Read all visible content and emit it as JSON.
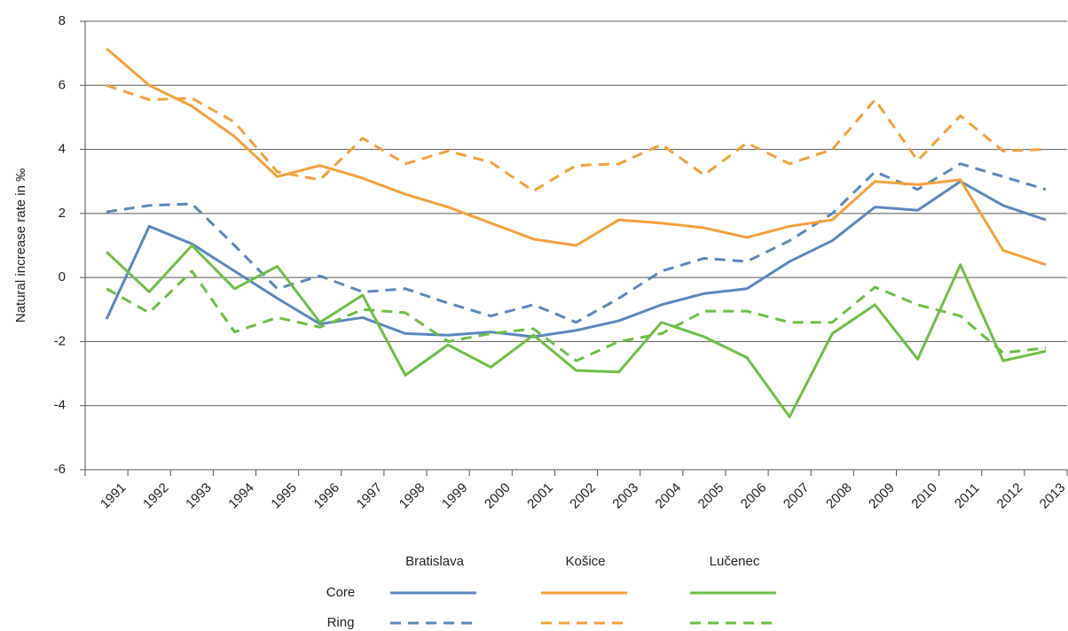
{
  "chart_data": {
    "type": "line",
    "y_label": "Natural increase rate in ‰",
    "categories": [
      "1991",
      "1992",
      "1993",
      "1994",
      "1995",
      "1996",
      "1997",
      "1998",
      "1999",
      "2000",
      "2001",
      "2002",
      "2003",
      "2004",
      "2005",
      "2006",
      "2007",
      "2008",
      "2009",
      "2010",
      "2011",
      "2012",
      "2013"
    ],
    "ylim": [
      -6,
      8
    ],
    "yticks": [
      -6,
      -4,
      -2,
      0,
      2,
      4,
      6,
      8
    ],
    "grid": true,
    "series": [
      {
        "name": "Bratislava",
        "color": "#5b87bd",
        "series": [
          {
            "name": "Core",
            "dashed": false,
            "values": [
              -1.3,
              1.6,
              1.05,
              0.2,
              -0.65,
              -1.45,
              -1.25,
              -1.75,
              -1.8,
              -1.7,
              -1.85,
              -1.65,
              -1.35,
              -0.85,
              -0.5,
              -0.35,
              0.5,
              1.15,
              2.2,
              2.1,
              3.0,
              2.25,
              1.8
            ]
          },
          {
            "name": "Ring",
            "dashed": true,
            "values": [
              2.05,
              2.25,
              2.3,
              1.0,
              -0.35,
              0.05,
              -0.45,
              -0.35,
              -0.8,
              -1.2,
              -0.85,
              -1.4,
              -0.65,
              0.2,
              0.6,
              0.5,
              1.15,
              2.0,
              3.3,
              2.75,
              3.55,
              3.15,
              2.75
            ]
          }
        ]
      },
      {
        "name": "Košice",
        "color": "#f5a03c",
        "series": [
          {
            "name": "Core",
            "dashed": false,
            "values": [
              7.15,
              6.0,
              5.35,
              4.4,
              3.15,
              3.5,
              3.1,
              2.6,
              2.2,
              1.7,
              1.2,
              1.0,
              1.8,
              1.7,
              1.55,
              1.25,
              1.6,
              1.8,
              3.0,
              2.9,
              3.05,
              0.85,
              0.4
            ]
          },
          {
            "name": "Ring",
            "dashed": true,
            "values": [
              6.0,
              5.55,
              5.6,
              4.85,
              3.3,
              3.05,
              4.35,
              3.55,
              3.95,
              3.6,
              2.7,
              3.5,
              3.55,
              4.15,
              3.2,
              4.2,
              3.55,
              4.0,
              5.55,
              3.65,
              5.05,
              3.95,
              4.0
            ]
          }
        ]
      },
      {
        "name": "Lučenec",
        "color": "#6cbf45",
        "series": [
          {
            "name": "Core",
            "dashed": false,
            "values": [
              0.8,
              -0.45,
              1.0,
              -0.35,
              0.35,
              -1.4,
              -0.55,
              -3.05,
              -2.1,
              -2.8,
              -1.8,
              -2.9,
              -2.95,
              -1.4,
              -1.85,
              -2.5,
              -4.35,
              -1.75,
              -0.85,
              -2.55,
              0.4,
              -2.6,
              -2.3
            ]
          },
          {
            "name": "Ring",
            "dashed": true,
            "values": [
              -0.35,
              -1.1,
              0.2,
              -1.7,
              -1.25,
              -1.55,
              -1.0,
              -1.1,
              -2.0,
              -1.75,
              -1.6,
              -2.6,
              -2.0,
              -1.75,
              -1.05,
              -1.05,
              -1.4,
              -1.4,
              -0.3,
              -0.85,
              -1.2,
              -2.35,
              -2.2
            ]
          }
        ]
      }
    ]
  }
}
